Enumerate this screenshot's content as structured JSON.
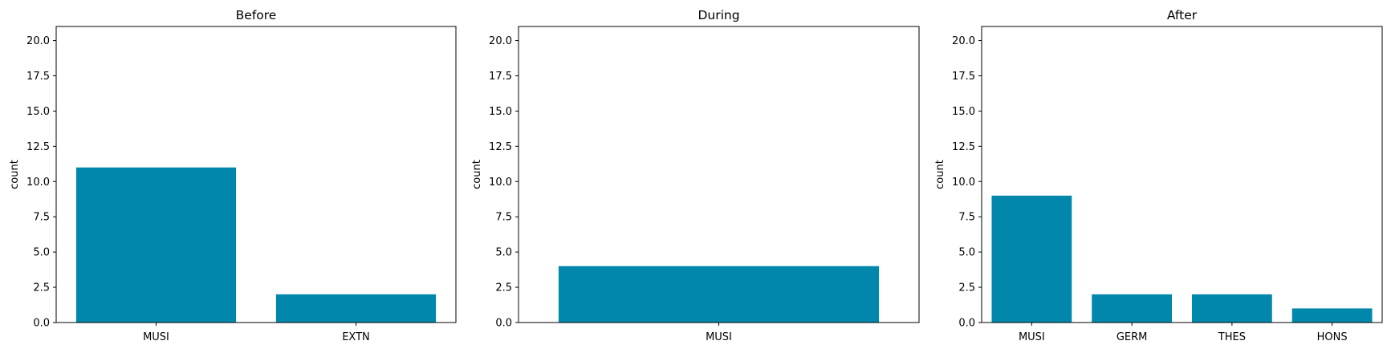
{
  "colors": {
    "bar": "#0087ab",
    "axis": "#000000",
    "background": "#ffffff"
  },
  "chart_data": [
    {
      "type": "bar",
      "title": "Before",
      "xlabel": "",
      "ylabel": "count",
      "categories": [
        "MUSI",
        "EXTN"
      ],
      "values": [
        11,
        2
      ],
      "ylim": [
        0,
        21
      ],
      "yticks": [
        "0.0",
        "2.5",
        "5.0",
        "7.5",
        "10.0",
        "12.5",
        "15.0",
        "17.5",
        "20.0"
      ],
      "grid": false
    },
    {
      "type": "bar",
      "title": "During",
      "xlabel": "",
      "ylabel": "count",
      "categories": [
        "MUSI"
      ],
      "values": [
        4
      ],
      "ylim": [
        0,
        21
      ],
      "yticks": [
        "0.0",
        "2.5",
        "5.0",
        "7.5",
        "10.0",
        "12.5",
        "15.0",
        "17.5",
        "20.0"
      ],
      "grid": false
    },
    {
      "type": "bar",
      "title": "After",
      "xlabel": "",
      "ylabel": "count",
      "categories": [
        "MUSI",
        "GERM",
        "THES",
        "HONS"
      ],
      "values": [
        9,
        2,
        2,
        1
      ],
      "ylim": [
        0,
        21
      ],
      "yticks": [
        "0.0",
        "2.5",
        "5.0",
        "7.5",
        "10.0",
        "12.5",
        "15.0",
        "17.5",
        "20.0"
      ],
      "grid": false
    }
  ]
}
